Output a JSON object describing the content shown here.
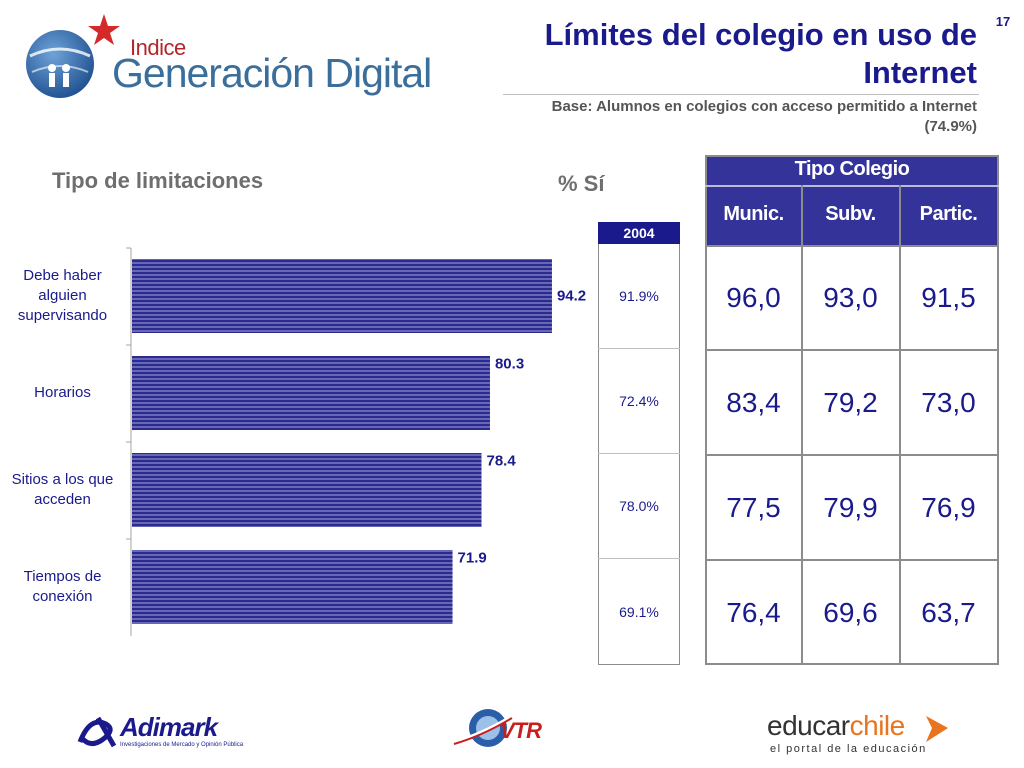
{
  "header": {
    "logo_line1": "Indice",
    "logo_line2": "Generación Digital",
    "title": "Límites del colegio en uso de Internet",
    "subtitle": "Base: Alumnos en colegios con acceso permitido a Internet (74.9%)",
    "slide_number": "17"
  },
  "left_heading": "Tipo de limitaciones",
  "percent_heading": "% Sí",
  "chart_data": {
    "type": "bar",
    "orientation": "horizontal",
    "categories": [
      "Debe haber alguien supervisando",
      "Horarios",
      "Sitios a los que acceden",
      "Tiempos de conexión"
    ],
    "values": [
      94.2,
      80.3,
      78.4,
      71.9
    ],
    "value_labels": [
      "94.2",
      "80.3",
      "78.4",
      "71.9"
    ],
    "xlim": [
      0,
      100
    ],
    "bar_color": "#2b2b8f"
  },
  "year_column": {
    "header": "2004",
    "values": [
      "91.9%",
      "72.4%",
      "78.0%",
      "69.1%"
    ]
  },
  "tipo_colegio": {
    "title": "Tipo Colegio",
    "columns": [
      "Munic.",
      "Subv.",
      "Partic."
    ],
    "rows": [
      [
        "96,0",
        "93,0",
        "91,5"
      ],
      [
        "83,4",
        "79,2",
        "73,0"
      ],
      [
        "77,5",
        "79,9",
        "76,9"
      ],
      [
        "76,4",
        "69,6",
        "63,7"
      ]
    ]
  },
  "footer": {
    "adimark": "Adimark",
    "adimark_tagline": "Investigaciones de Mercado y Opinión Pública",
    "vtr": "VTR",
    "educar_a": "educar",
    "educar_b": "chile",
    "educar_tagline": "el portal de la educación"
  },
  "colors": {
    "navy": "#1a1a8c",
    "header_blue": "#33339a",
    "gray_text": "#6e6e6e",
    "brand_red": "#b3262c"
  }
}
